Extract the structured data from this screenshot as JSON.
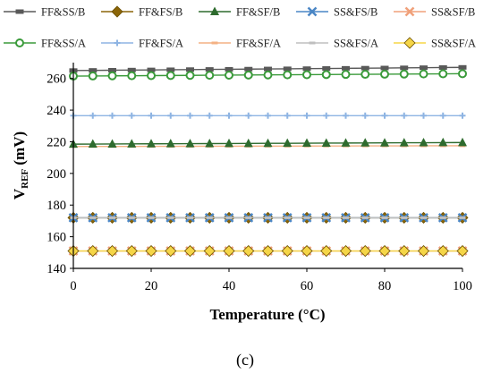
{
  "chart_data": {
    "type": "line",
    "xlabel": "Temperature (°C)",
    "ylabel_main": "V",
    "ylabel_sub": "REF",
    "ylabel_unit": " (mV)",
    "xlim": [
      0,
      100
    ],
    "ylim": [
      140,
      270
    ],
    "xticks": [
      0,
      20,
      40,
      60,
      80,
      100
    ],
    "yticks": [
      140,
      160,
      180,
      200,
      220,
      240,
      260
    ],
    "x": [
      0,
      5,
      10,
      15,
      20,
      25,
      30,
      35,
      40,
      45,
      50,
      55,
      60,
      65,
      70,
      75,
      80,
      85,
      90,
      95,
      100
    ],
    "grid": false,
    "legend_position": "top",
    "caption": "(c)",
    "series": [
      {
        "name": "FF&SS/B",
        "color": "#595959",
        "marker": "square",
        "start": 265.0,
        "end": 267.0
      },
      {
        "name": "FF&FS/B",
        "color": "#8B6508",
        "marker": "diamond",
        "start": 172.0,
        "end": 172.0
      },
      {
        "name": "FF&SF/B",
        "color": "#2E6B2E",
        "marker": "triangle",
        "start": 218.5,
        "end": 219.5
      },
      {
        "name": "SS&FS/B",
        "color": "#4A86C5",
        "marker": "x",
        "start": 172.0,
        "end": 172.0
      },
      {
        "name": "SS&SF/B",
        "color": "#F0A07A",
        "marker": "x",
        "start": 151.0,
        "end": 151.0
      },
      {
        "name": "FF&SS/A",
        "color": "#3A9A3A",
        "marker": "circle",
        "start": 261.5,
        "end": 263.0
      },
      {
        "name": "FF&FS/A",
        "color": "#8EB4E3",
        "marker": "plus",
        "start": 236.5,
        "end": 236.5
      },
      {
        "name": "FF&SF/A",
        "color": "#F4B183",
        "marker": "dash",
        "start": 217.0,
        "end": 217.5
      },
      {
        "name": "SS&FS/A",
        "color": "#BFBFBF",
        "marker": "dash",
        "start": 172.0,
        "end": 172.0
      },
      {
        "name": "SS&SF/A",
        "color": "#F5D547",
        "marker": "diamond",
        "start": 151.0,
        "end": 151.0
      }
    ]
  }
}
